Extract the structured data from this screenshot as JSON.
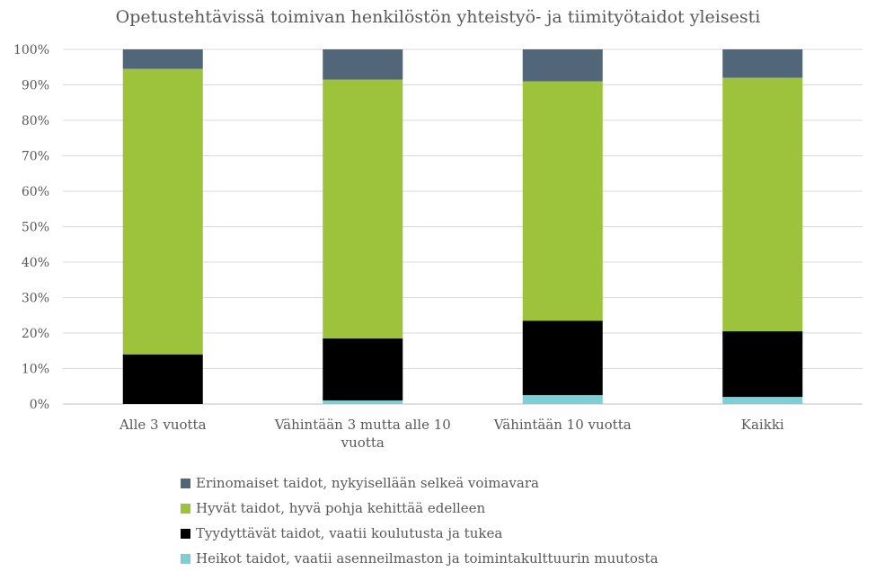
{
  "chart_data": {
    "type": "bar",
    "stacked": true,
    "title": "Opetustehtävissä toimivan henkilöstön yhteistyö- ja tiimityötaidot yleisesti",
    "categories": [
      [
        "Alle 3 vuotta"
      ],
      [
        "Vähintään 3 mutta alle 10",
        "vuotta"
      ],
      [
        "Vähintään 10 vuotta"
      ],
      [
        "Kaikki"
      ]
    ],
    "y_ticks": [
      "0%",
      "10%",
      "20%",
      "30%",
      "40%",
      "50%",
      "60%",
      "70%",
      "80%",
      "90%",
      "100%"
    ],
    "ylim": [
      0,
      100
    ],
    "grid": true,
    "legend_position": "bottom",
    "series": [
      {
        "name": "Heikot taidot, vaatii asenneilmaston ja toimintakulttuurin muutosta",
        "color": "#7ecfd5",
        "values": [
          0,
          1,
          2.5,
          2
        ]
      },
      {
        "name": "Tyydyttävät taidot, vaatii koulutusta ja tukea",
        "color": "#000000",
        "values": [
          14,
          17.5,
          21,
          18.5
        ]
      },
      {
        "name": "Hyvät taidot, hyvä pohja kehittää edelleen",
        "color": "#9cc33b",
        "values": [
          80.5,
          73,
          67.5,
          71.5
        ]
      },
      {
        "name": "Erinomaiset taidot, nykyisellään selkeä voimavara",
        "color": "#52667a",
        "values": [
          5.5,
          8.5,
          9,
          8
        ]
      }
    ]
  }
}
